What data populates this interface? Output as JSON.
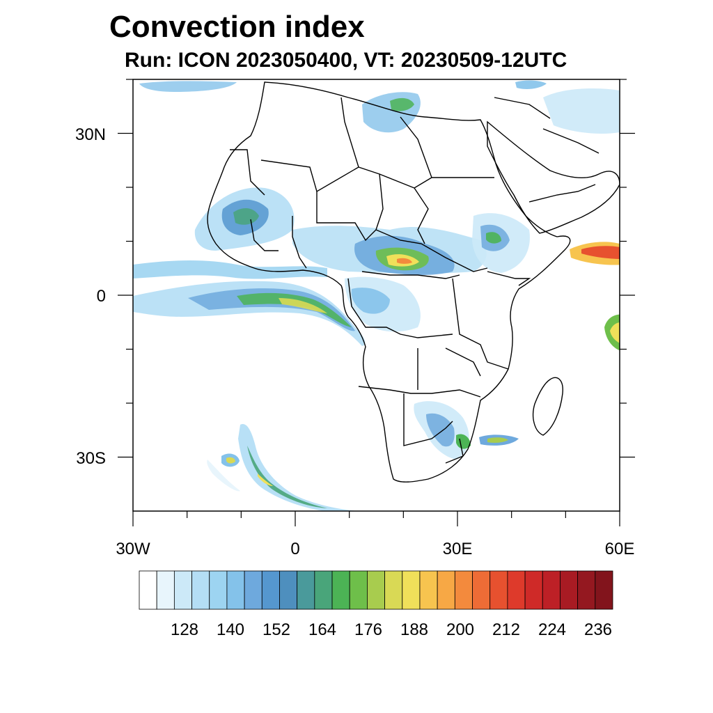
{
  "header": {
    "title": "Convection index",
    "subtitle": "Run: ICON 2023050400,  VT: 20230509-12UTC"
  },
  "map": {
    "lon_range": [
      -30,
      60
    ],
    "lat_range": [
      -40,
      40
    ],
    "lon_tick_labels": [
      "30W",
      "0",
      "30E",
      "60E"
    ],
    "lat_tick_labels": [
      "30N",
      "0",
      "30S"
    ]
  },
  "colorbar": {
    "labels": [
      "128",
      "140",
      "152",
      "164",
      "176",
      "188",
      "200",
      "212",
      "224",
      "236"
    ],
    "colors": [
      "#ffffff",
      "#e8f5fc",
      "#cce9f8",
      "#b4def5",
      "#9dd4f1",
      "#84c2ea",
      "#6ea9dd",
      "#5597cf",
      "#4e8fbe",
      "#4a9a9b",
      "#49a57a",
      "#4cb355",
      "#6ebf4a",
      "#a8cc4e",
      "#d9d955",
      "#f0e05a",
      "#f7c44f",
      "#f7a845",
      "#f38a3d",
      "#ee6c36",
      "#e7512f",
      "#de3a2b",
      "#cf2a28",
      "#bd2026",
      "#a81b23",
      "#941820",
      "#82141c"
    ]
  }
}
